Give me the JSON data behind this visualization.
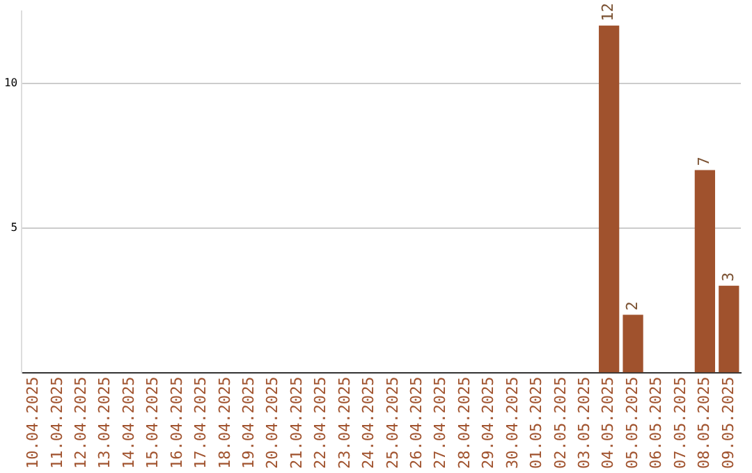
{
  "chart_data": {
    "type": "bar",
    "categories": [
      "10.04.2025",
      "11.04.2025",
      "12.04.2025",
      "13.04.2025",
      "14.04.2025",
      "15.04.2025",
      "16.04.2025",
      "17.04.2025",
      "18.04.2025",
      "19.04.2025",
      "20.04.2025",
      "21.04.2025",
      "22.04.2025",
      "23.04.2025",
      "24.04.2025",
      "25.04.2025",
      "26.04.2025",
      "27.04.2025",
      "28.04.2025",
      "29.04.2025",
      "30.04.2025",
      "01.05.2025",
      "02.05.2025",
      "03.05.2025",
      "04.05.2025",
      "05.05.2025",
      "06.05.2025",
      "07.05.2025",
      "08.05.2025",
      "09.05.2025"
    ],
    "values": [
      0,
      0,
      0,
      0,
      0,
      0,
      0,
      0,
      0,
      0,
      0,
      0,
      0,
      0,
      0,
      0,
      0,
      0,
      0,
      0,
      0,
      0,
      0,
      0,
      12,
      2,
      0,
      0,
      7,
      3
    ],
    "value_labels": [
      null,
      null,
      null,
      null,
      null,
      null,
      null,
      null,
      null,
      null,
      null,
      null,
      null,
      null,
      null,
      null,
      null,
      null,
      null,
      null,
      null,
      null,
      null,
      null,
      "12",
      "2",
      null,
      null,
      "7",
      "3"
    ],
    "color": "#a0522d",
    "ylim": [
      0,
      12.5
    ],
    "yticks": [
      5,
      10
    ],
    "grid": "y"
  }
}
